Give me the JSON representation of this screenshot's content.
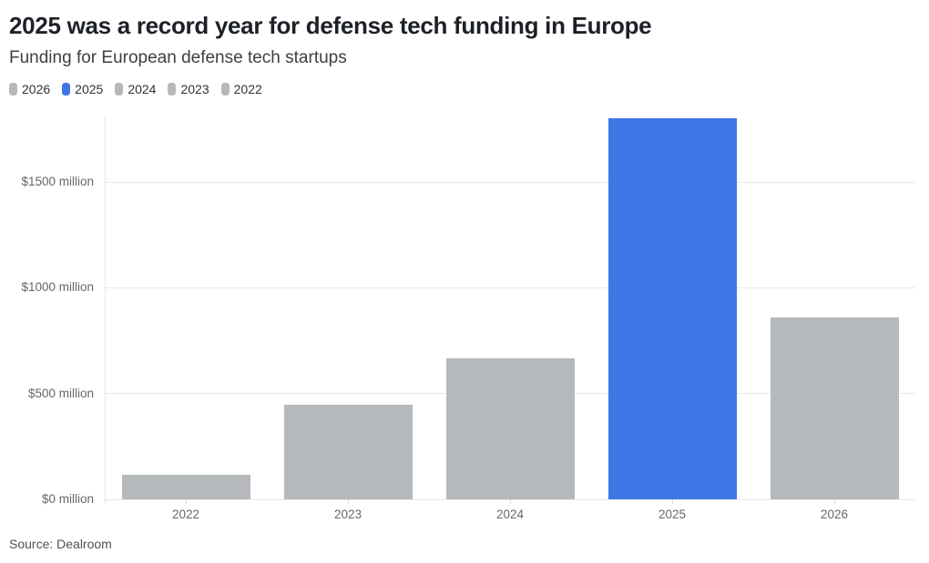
{
  "header": {
    "title": "2025 was a record year for defense tech funding in Europe",
    "subtitle": "Funding for European defense tech startups"
  },
  "legend": {
    "items": [
      {
        "label": "2026",
        "color": "#b6b9bc"
      },
      {
        "label": "2025",
        "color": "#3e76e5"
      },
      {
        "label": "2024",
        "color": "#b6b9bc"
      },
      {
        "label": "2023",
        "color": "#b6b9bc"
      },
      {
        "label": "2022",
        "color": "#b6b9bc"
      }
    ]
  },
  "chart_data": {
    "type": "bar",
    "title": "2025 was a record year for defense tech funding in Europe",
    "subtitle": "Funding for European defense tech startups",
    "categories": [
      "2022",
      "2023",
      "2024",
      "2025",
      "2026"
    ],
    "values": [
      115,
      445,
      665,
      1800,
      860
    ],
    "unit": "$ million",
    "bar_colors": [
      "#b6b9bc",
      "#b6b9bc",
      "#b6b9bc",
      "#3e76e5",
      "#b6b9bc"
    ],
    "highlight_category": "2025",
    "xlabel": "",
    "ylabel": "",
    "yticks": [
      0,
      500,
      1000,
      1500
    ],
    "ytick_labels": [
      "$0 million",
      "$500 million",
      "$1000 million",
      "$1500 million"
    ],
    "ylim": [
      0,
      1810
    ],
    "grid": "horizontal",
    "legend_position": "top-left"
  },
  "footer": {
    "source": "Source: Dealroom"
  },
  "colors": {
    "accent_blue": "#3e76e5",
    "bar_gray": "#b6b9bc",
    "grid": "#e7e9eb",
    "axis_text": "#63676c",
    "title_text": "#1d2127",
    "subtitle_text": "#3c4044",
    "source_text": "#4e5256"
  }
}
